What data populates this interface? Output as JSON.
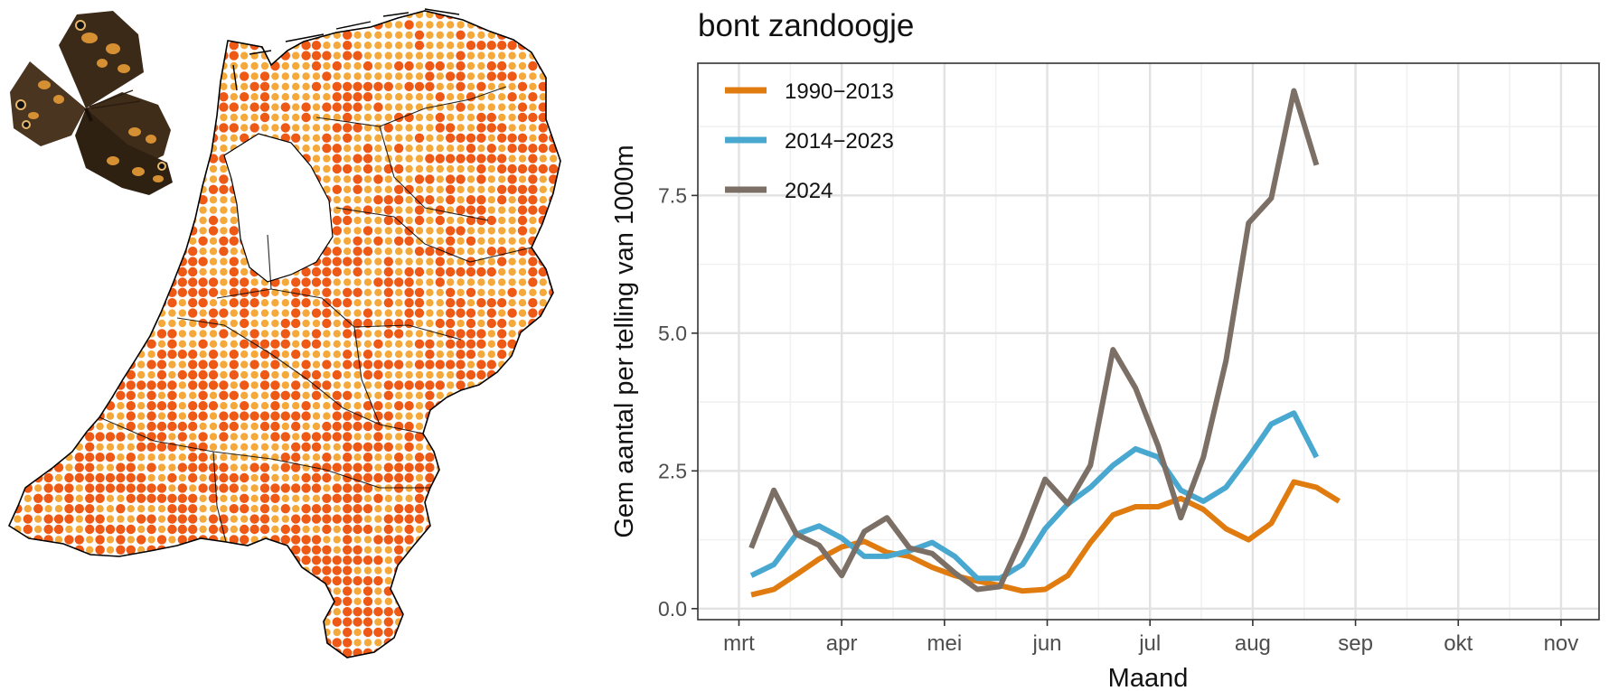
{
  "colors": {
    "series": [
      "#e07b10",
      "#49a8d0",
      "#7b6f66"
    ],
    "dot_dark": "#ee5a16",
    "dot_light": "#f5a93a",
    "grid_major": "#e2e2e2",
    "grid_minor": "#f1f1f1",
    "axis": "#333333"
  },
  "map": {
    "illustration": "netherlands-distribution-dot-map",
    "butterfly": "speckled-wood-butterfly"
  },
  "chart_data": {
    "type": "line",
    "title": "bont zandoogje",
    "xlabel": "Maand",
    "ylabel": "Gem aantal per telling van 1000m",
    "x_tick_labels": [
      "mrt",
      "apr",
      "mei",
      "jun",
      "jul",
      "aug",
      "sep",
      "okt",
      "nov"
    ],
    "x_tick_values": [
      0,
      1,
      2,
      3,
      4,
      5,
      6,
      7,
      8
    ],
    "y_ticks": [
      0,
      2.5,
      5,
      7.5
    ],
    "y_tick_labels": [
      "0.0",
      "2.5",
      "5.0",
      "7.5"
    ],
    "xlim": [
      -0.4,
      8.37
    ],
    "ylim": [
      -0.2,
      9.9
    ],
    "grid": true,
    "legend_position": "top-left",
    "series": [
      {
        "name": "1990−2013",
        "x": [
          0.12,
          0.34,
          0.56,
          0.78,
          1.0,
          1.22,
          1.44,
          1.66,
          1.88,
          2.1,
          2.32,
          2.54,
          2.76,
          2.98,
          3.2,
          3.42,
          3.64,
          3.86,
          4.08,
          4.3,
          4.52,
          4.74,
          4.96,
          5.18,
          5.4,
          5.62,
          5.84,
          6.06,
          6.28,
          6.5,
          6.72
        ],
        "values": [
          0.25,
          0.35,
          0.62,
          0.9,
          1.12,
          1.22,
          1.02,
          0.95,
          0.75,
          0.6,
          0.5,
          0.42,
          0.32,
          0.35,
          0.6,
          1.2,
          1.7,
          1.85,
          1.85,
          2.0,
          1.8,
          1.45,
          1.25,
          1.55,
          2.3,
          2.2,
          1.95,
          null,
          null,
          null,
          null
        ]
      },
      {
        "name": "2014−2023",
        "x": [
          0.12,
          0.34,
          0.56,
          0.78,
          1.0,
          1.22,
          1.44,
          1.66,
          1.88,
          2.1,
          2.32,
          2.54,
          2.76,
          2.98,
          3.2,
          3.42,
          3.64,
          3.86,
          4.08,
          4.3,
          4.52,
          4.74,
          4.96,
          5.18,
          5.4,
          5.62,
          5.84,
          6.06,
          6.28,
          6.5,
          6.72
        ],
        "values": [
          0.6,
          0.8,
          1.35,
          1.5,
          1.28,
          0.95,
          0.95,
          1.05,
          1.2,
          0.95,
          0.55,
          0.55,
          0.8,
          1.45,
          1.9,
          2.2,
          2.6,
          2.9,
          2.75,
          2.15,
          1.95,
          2.2,
          2.75,
          3.35,
          3.55,
          2.75,
          null,
          null,
          null,
          null,
          null
        ]
      },
      {
        "name": "2024",
        "x": [
          0.12,
          0.34,
          0.56,
          0.78,
          1.0,
          1.22,
          1.44,
          1.66,
          1.88,
          2.1,
          2.32,
          2.54,
          2.76,
          2.98,
          3.2,
          3.42,
          3.64,
          3.86,
          4.08,
          4.3,
          4.52,
          4.74,
          4.96,
          5.18,
          5.4,
          5.62,
          5.84,
          6.06,
          6.28,
          6.5,
          6.72
        ],
        "values": [
          1.1,
          2.15,
          1.35,
          1.15,
          0.6,
          1.4,
          1.65,
          1.1,
          1.0,
          0.65,
          0.35,
          0.4,
          1.3,
          2.35,
          1.9,
          2.6,
          4.7,
          4.0,
          2.95,
          1.65,
          2.75,
          4.5,
          7.0,
          7.45,
          9.4,
          8.05,
          null,
          null,
          null,
          null,
          null
        ]
      }
    ]
  }
}
